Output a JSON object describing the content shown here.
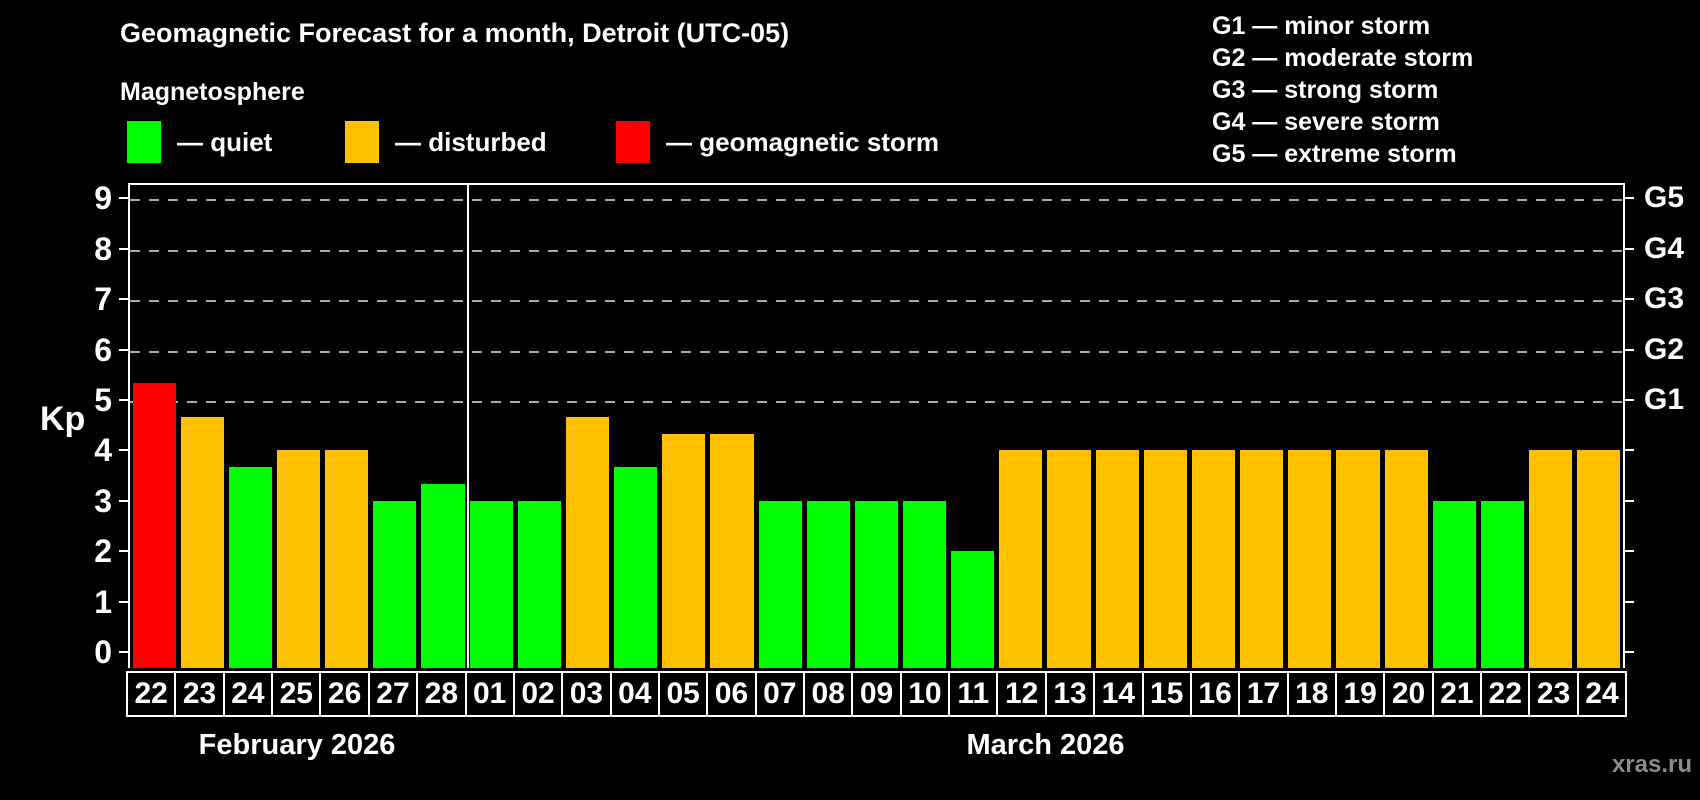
{
  "title": "Geomagnetic Forecast for a month, Detroit (UTC-05)",
  "subtitle": "Magnetosphere",
  "kp_axis_label": "Kp",
  "watermark": "xras.ru",
  "magnetosphere_legend": {
    "items": [
      {
        "label": "— quiet",
        "status": "quiet",
        "color": "#00ff00"
      },
      {
        "label": "— disturbed",
        "status": "disturbed",
        "color": "#ffc000"
      },
      {
        "label": "— geomagnetic storm",
        "status": "storm",
        "color": "#ff0000"
      }
    ]
  },
  "storm_scale_legend": {
    "lines": [
      "G1 — minor storm",
      "G2 — moderate storm",
      "G3 — strong storm",
      "G4 — severe storm",
      "G5 — extreme storm"
    ]
  },
  "chart_data": {
    "type": "bar",
    "title": "Geomagnetic Forecast for a month, Detroit (UTC-05)",
    "ylabel": "Kp",
    "ylim": [
      0,
      9
    ],
    "yticks": [
      0,
      1,
      2,
      3,
      4,
      5,
      6,
      7,
      8,
      9
    ],
    "grid_kp_levels": [
      5,
      6,
      7,
      8,
      9
    ],
    "grid": "horizontal dashed lines at Kp 5-9 (G storm levels)",
    "legend_position": "top-left",
    "right_axis": [
      {
        "label": "G1",
        "kp": 5
      },
      {
        "label": "G2",
        "kp": 6
      },
      {
        "label": "G3",
        "kp": 7
      },
      {
        "label": "G4",
        "kp": 8
      },
      {
        "label": "G5",
        "kp": 9
      }
    ],
    "status_colors": {
      "quiet": "#00ff00",
      "disturbed": "#ffc000",
      "storm": "#ff0000"
    },
    "months": [
      {
        "label": "February 2026",
        "days": [
          {
            "day": "22",
            "kp": 5.33,
            "status": "storm"
          },
          {
            "day": "23",
            "kp": 4.67,
            "status": "disturbed"
          },
          {
            "day": "24",
            "kp": 3.67,
            "status": "quiet"
          },
          {
            "day": "25",
            "kp": 4,
            "status": "disturbed"
          },
          {
            "day": "26",
            "kp": 4,
            "status": "disturbed"
          },
          {
            "day": "27",
            "kp": 3,
            "status": "quiet"
          },
          {
            "day": "28",
            "kp": 3.33,
            "status": "quiet"
          }
        ]
      },
      {
        "label": "March 2026",
        "days": [
          {
            "day": "01",
            "kp": 3,
            "status": "quiet"
          },
          {
            "day": "02",
            "kp": 3,
            "status": "quiet"
          },
          {
            "day": "03",
            "kp": 4.67,
            "status": "disturbed"
          },
          {
            "day": "04",
            "kp": 3.67,
            "status": "quiet"
          },
          {
            "day": "05",
            "kp": 4.33,
            "status": "disturbed"
          },
          {
            "day": "06",
            "kp": 4.33,
            "status": "disturbed"
          },
          {
            "day": "07",
            "kp": 3,
            "status": "quiet"
          },
          {
            "day": "08",
            "kp": 3,
            "status": "quiet"
          },
          {
            "day": "09",
            "kp": 3,
            "status": "quiet"
          },
          {
            "day": "10",
            "kp": 3,
            "status": "quiet"
          },
          {
            "day": "11",
            "kp": 2,
            "status": "quiet"
          },
          {
            "day": "12",
            "kp": 4,
            "status": "disturbed"
          },
          {
            "day": "13",
            "kp": 4,
            "status": "disturbed"
          },
          {
            "day": "14",
            "kp": 4,
            "status": "disturbed"
          },
          {
            "day": "15",
            "kp": 4,
            "status": "disturbed"
          },
          {
            "day": "16",
            "kp": 4,
            "status": "disturbed"
          },
          {
            "day": "17",
            "kp": 4,
            "status": "disturbed"
          },
          {
            "day": "18",
            "kp": 4,
            "status": "disturbed"
          },
          {
            "day": "19",
            "kp": 4,
            "status": "disturbed"
          },
          {
            "day": "20",
            "kp": 4,
            "status": "disturbed"
          },
          {
            "day": "21",
            "kp": 3,
            "status": "quiet"
          },
          {
            "day": "22",
            "kp": 3,
            "status": "quiet"
          },
          {
            "day": "23",
            "kp": 4,
            "status": "disturbed"
          },
          {
            "day": "24",
            "kp": 4,
            "status": "disturbed"
          }
        ]
      }
    ]
  }
}
